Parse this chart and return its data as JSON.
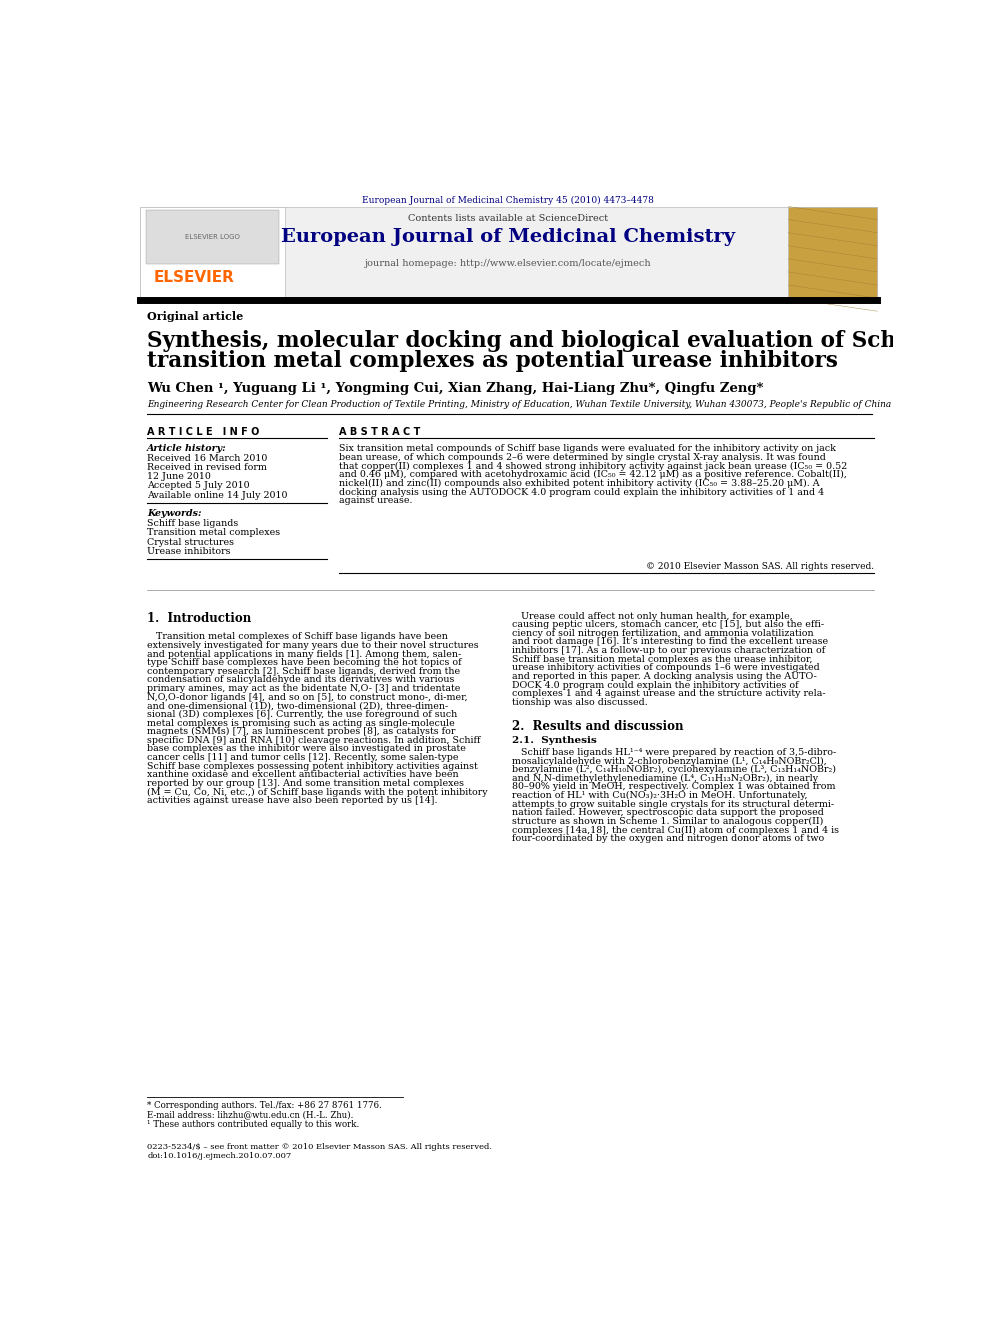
{
  "bg_color": "#ffffff",
  "journal_citation": "European Journal of Medicinal Chemistry 45 (2010) 4473–4478",
  "journal_name": "European Journal of Medicinal Chemistry",
  "journal_sciencedirect": "Contents lists available at ScienceDirect",
  "journal_homepage": "journal homepage: http://www.elsevier.com/locate/ejmech",
  "elsevier_color": "#FF6600",
  "original_article": "Original article",
  "title_line1": "Synthesis, molecular docking and biological evaluation of Schiff base",
  "title_line2": "transition metal complexes as potential urease inhibitors",
  "authors": "Wu Chen ¹, Yuguang Li ¹, Yongming Cui, Xian Zhang, Hai-Liang Zhu*, Qingfu Zeng*",
  "affiliation": "Engineering Research Center for Clean Production of Textile Printing, Ministry of Education, Wuhan Textile University, Wuhan 430073, People's Republic of China",
  "article_info_header": "A R T I C L E   I N F O",
  "abstract_header": "A B S T R A C T",
  "article_history_label": "Article history:",
  "received": "Received 16 March 2010",
  "received_revised": "Received in revised form",
  "revised_date": "12 June 2010",
  "accepted": "Accepted 5 July 2010",
  "available": "Available online 14 July 2010",
  "keywords_label": "Keywords:",
  "keyword1": "Schiff base ligands",
  "keyword2": "Transition metal complexes",
  "keyword3": "Crystal structures",
  "keyword4": "Urease inhibitors",
  "abstract_lines": [
    "Six transition metal compounds of Schiff base ligands were evaluated for the inhibitory activity on jack",
    "bean urease, of which compounds 2–6 were determined by single crystal X-ray analysis. It was found",
    "that copper(II) complexes 1 and 4 showed strong inhibitory activity against jack bean urease (IC₅₀ = 0.52",
    "and 0.46 μM), compared with acetohydroxamic acid (IC₅₀ = 42.12 μM) as a positive reference. Cobalt(II),",
    "nickel(II) and zinc(II) compounds also exhibited potent inhibitory activity (IC₅₀ = 3.88–25.20 μM). A",
    "docking analysis using the AUTODOCK 4.0 program could explain the inhibitory activities of 1 and 4",
    "against urease."
  ],
  "copyright": "© 2010 Elsevier Masson SAS. All rights reserved.",
  "section1_header": "1.  Introduction",
  "intro_left_lines": [
    "   Transition metal complexes of Schiff base ligands have been",
    "extensively investigated for many years due to their novel structures",
    "and potential applications in many fields [1]. Among them, salen-",
    "type Schiff base complexes have been becoming the hot topics of",
    "contemporary research [2]. Schiff base ligands, derived from the",
    "condensation of salicylaldehyde and its derivatives with various",
    "primary amines, may act as the bidentate N,O- [3] and tridentate",
    "N,O,O-donor ligands [4], and so on [5], to construct mono-, di-mer,",
    "and one-dimensional (1D), two-dimensional (2D), three-dimen-",
    "sional (3D) complexes [6]. Currently, the use foreground of such",
    "metal complexes is promising such as acting as single-molecule",
    "magnets (SMMs) [7], as luminescent probes [8], as catalysts for",
    "specific DNA [9] and RNA [10] cleavage reactions. In addition, Schiff",
    "base complexes as the inhibitor were also investigated in prostate",
    "cancer cells [11] and tumor cells [12]. Recently, some salen-type",
    "Schiff base complexes possessing potent inhibitory activities against",
    "xanthine oxidase and excellent antibacterial activities have been",
    "reported by our group [13]. And some transition metal complexes",
    "(M = Cu, Co, Ni, etc.,) of Schiff base ligands with the potent inhibitory",
    "activities against urease have also been reported by us [14]."
  ],
  "intro_right_lines": [
    "   Urease could affect not only human health, for example,",
    "causing peptic ulcers, stomach cancer, etc [15], but also the effi-",
    "ciency of soil nitrogen fertilization, and ammonia volatilization",
    "and root damage [16]. It’s interesting to find the excellent urease",
    "inhibitors [17]. As a follow-up to our previous characterization of",
    "Schiff base transition metal complexes as the urease inhibitor,",
    "urease inhibitory activities of compounds 1–6 were investigated",
    "and reported in this paper. A docking analysis using the AUTO-",
    "DOCK 4.0 program could explain the inhibitory activities of",
    "complexes 1 and 4 against urease and the structure activity rela-",
    "tionship was also discussed."
  ],
  "section2_header": "2.  Results and discussion",
  "section21_header": "2.1.  Synthesis",
  "synthesis_lines": [
    "   Schiff base ligands HL¹⁻⁴ were prepared by reaction of 3,5-dibro-",
    "mosalicylaldehyde with 2-chlorobenzylamine (L¹, C₁₄H₉NOBr₂Cl),",
    "benzylamine (L², C₁₄H₁₀NOBr₂), cyclohexylamine (L³, C₁₃H₁₄NOBr₂)",
    "and N,N-dimethylethylenediamine (L⁴, C₁₁H₁₃N₂OBr₂), in nearly",
    "80–90% yield in MeOH, respectively. Complex 1 was obtained from",
    "reaction of HL¹ with Cu(NO₃)₂·3H₂O in MeOH. Unfortunately,",
    "attempts to grow suitable single crystals for its structural determi-",
    "nation failed. However, spectroscopic data support the proposed",
    "structure as shown in Scheme 1. Similar to analogous copper(II)",
    "complexes [14a,18], the central Cu(II) atom of complexes 1 and 4 is",
    "four-coordinated by the oxygen and nitrogen donor atoms of two"
  ],
  "footnote1": "* Corresponding authors. Tel./fax: +86 27 8761 1776.",
  "footnote_email": "E-mail address: lihzhu@wtu.edu.cn (H.-L. Zhu).",
  "footnote2": "¹ These authors contributed equally to this work.",
  "issn": "0223-5234/$ – see front matter © 2010 Elsevier Masson SAS. All rights reserved.",
  "doi": "doi:10.1016/j.ejmech.2010.07.007",
  "dark_navy": "#000080",
  "orange": "#FF6600"
}
